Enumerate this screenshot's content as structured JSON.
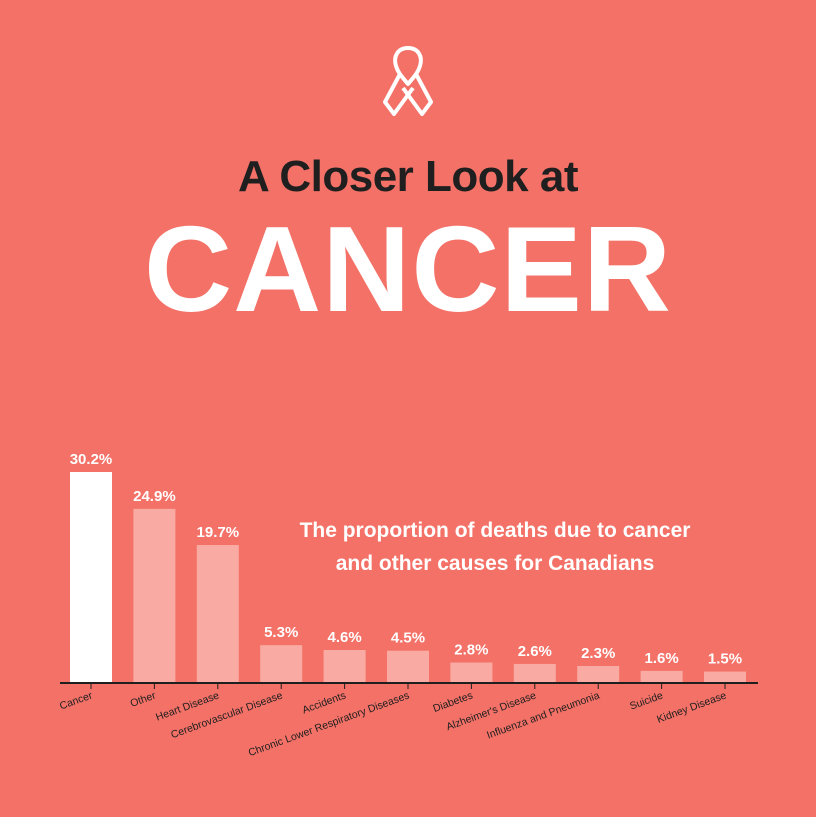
{
  "header": {
    "icon": "awareness-ribbon-icon",
    "subtitle": "A Closer Look at",
    "title": "CANCER"
  },
  "caption": {
    "line1": "The proportion of deaths due to cancer",
    "line2": "and other causes for Canadians"
  },
  "colors": {
    "background": "#f37167",
    "highlight_bar": "#ffffff",
    "bar": "#f9aaa3",
    "axis": "#1f1f1f"
  },
  "chart_data": {
    "type": "bar",
    "title": "The proportion of deaths due to cancer and other causes for Canadians",
    "categories": [
      "Cancer",
      "Other",
      "Heart Disease",
      "Cerebrovascular Disease",
      "Accidents",
      "Chronic Lower Respiratory Diseases",
      "Diabetes",
      "Alzheimer's Disease",
      "Influenza and Pneumonia",
      "Suicide",
      "Kidney Disease"
    ],
    "values": [
      30.2,
      24.9,
      19.7,
      5.3,
      4.6,
      4.5,
      2.8,
      2.6,
      2.3,
      1.6,
      1.5
    ],
    "value_labels": [
      "30.2%",
      "24.9%",
      "19.7%",
      "5.3%",
      "4.6%",
      "4.5%",
      "2.8%",
      "2.6%",
      "2.3%",
      "1.6%",
      "1.5%"
    ],
    "unit": "%",
    "highlight_index": 0,
    "grid": false,
    "legend": "none"
  }
}
